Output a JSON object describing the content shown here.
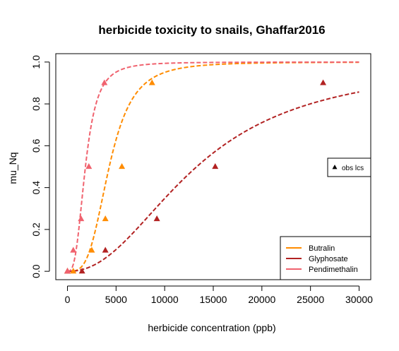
{
  "chart_data": {
    "type": "scatter",
    "title": "herbicide toxicity to snails, Ghaffar2016",
    "xlabel": "herbicide concentration (ppb)",
    "ylabel": "mu_Nq",
    "xlim": [
      -1200,
      31200
    ],
    "ylim": [
      -0.04,
      1.04
    ],
    "x_ticks": [
      0,
      5000,
      10000,
      15000,
      20000,
      25000,
      30000
    ],
    "y_ticks": [
      0.0,
      0.2,
      0.4,
      0.6,
      0.8,
      1.0
    ],
    "x_tick_labels": [
      "0",
      "5000",
      "10000",
      "15000",
      "20000",
      "25000",
      "30000"
    ],
    "y_tick_labels": [
      "0.0",
      "0.2",
      "0.4",
      "0.6",
      "0.8",
      "1.0"
    ],
    "grid": false,
    "legend": {
      "position": "bottom-right",
      "entries": [
        {
          "label": "Butralin",
          "color": "#ff8c00"
        },
        {
          "label": "Glyphosate",
          "color": "#b22222"
        },
        {
          "label": "Pendimethalin",
          "color": "#f0626e"
        }
      ]
    },
    "marker_legend": {
      "position": "right",
      "label": "obs lcs"
    },
    "series": [
      {
        "name": "Butralin",
        "color": "#ff8c00",
        "points": [
          [
            0,
            0.0
          ],
          [
            600,
            0.0
          ],
          [
            2500,
            0.1
          ],
          [
            3900,
            0.25
          ],
          [
            5600,
            0.5
          ],
          [
            8700,
            0.9
          ]
        ],
        "fit": {
          "model": "log-logistic",
          "ec50": 4300,
          "slope": 3.5
        }
      },
      {
        "name": "Glyphosate",
        "color": "#b22222",
        "points": [
          [
            0,
            0.0
          ],
          [
            1500,
            0.0
          ],
          [
            3900,
            0.1
          ],
          [
            9200,
            0.25
          ],
          [
            15200,
            0.5
          ],
          [
            26300,
            0.9
          ]
        ],
        "fit": {
          "model": "log-logistic",
          "ec50": 13300,
          "slope": 2.2
        }
      },
      {
        "name": "Pendimethalin",
        "color": "#f0626e",
        "points": [
          [
            0,
            0.0
          ],
          [
            600,
            0.1
          ],
          [
            1400,
            0.25
          ],
          [
            2200,
            0.5
          ],
          [
            3800,
            0.9
          ]
        ],
        "fit": {
          "model": "log-logistic",
          "ec50": 1850,
          "slope": 3.0
        }
      }
    ]
  }
}
